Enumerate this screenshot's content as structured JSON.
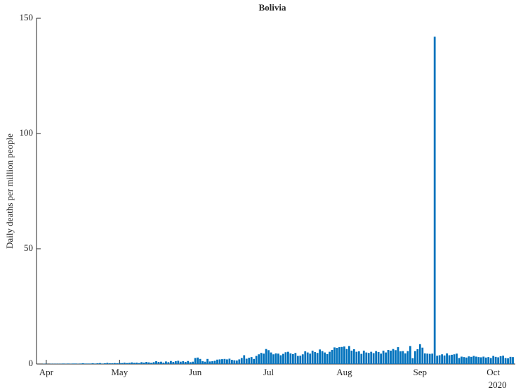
{
  "chart_data": {
    "type": "bar",
    "title": "Bolivia",
    "y_label": "Daily deaths per million people",
    "x_year_label": "2020",
    "color": "#0072bd",
    "x": [
      90,
      91,
      92,
      93,
      94,
      95,
      96,
      97,
      98,
      99,
      100,
      101,
      102,
      103,
      104,
      105,
      106,
      107,
      108,
      109,
      110,
      111,
      112,
      113,
      114,
      115,
      116,
      117,
      118,
      119,
      120,
      121,
      122,
      123,
      124,
      125,
      126,
      127,
      128,
      129,
      130,
      131,
      132,
      133,
      134,
      135,
      136,
      137,
      138,
      139,
      140,
      141,
      142,
      143,
      144,
      145,
      146,
      147,
      148,
      149,
      150,
      151,
      152,
      153,
      154,
      155,
      156,
      157,
      158,
      159,
      160,
      161,
      162,
      163,
      164,
      165,
      166,
      167,
      168,
      169,
      170,
      171,
      172,
      173,
      174,
      175,
      176,
      177,
      178,
      179,
      180,
      181,
      182,
      183,
      184,
      185,
      186,
      187,
      188,
      189,
      190,
      191,
      192,
      193,
      194,
      195,
      196,
      197,
      198,
      199,
      200,
      201,
      202,
      203,
      204,
      205,
      206,
      207,
      208,
      209,
      210,
      211,
      212,
      213,
      214,
      215,
      216,
      217,
      218,
      219,
      220,
      221,
      222,
      223,
      224,
      225,
      226,
      227,
      228,
      229,
      230,
      231,
      232,
      233,
      234,
      235,
      236,
      237,
      238,
      239,
      240,
      241,
      242,
      243,
      244,
      245,
      246,
      247,
      248,
      249,
      250,
      251,
      252,
      253,
      254,
      255,
      256,
      257,
      258,
      259,
      260,
      261,
      262,
      263,
      264,
      265,
      266,
      267,
      268,
      269,
      270,
      271,
      272,
      273,
      274,
      275,
      276,
      277,
      278,
      279,
      280,
      281,
      282,
      283
    ],
    "values": [
      0,
      0.1,
      0.1,
      0,
      0.1,
      0.1,
      0.1,
      0.1,
      0.1,
      0.2,
      0.1,
      0.2,
      0.1,
      0.2,
      0.2,
      0.1,
      0.2,
      0.3,
      0.2,
      0.2,
      0.2,
      0.3,
      0.2,
      0.3,
      0.4,
      0.2,
      0.3,
      0.5,
      0.3,
      0.3,
      0.4,
      0.3,
      0.5,
      0.4,
      0.6,
      0.4,
      0.5,
      0.7,
      0.5,
      0.6,
      0.4,
      0.8,
      0.6,
      0.9,
      0.7,
      0.5,
      0.8,
      1.2,
      0.9,
      1.0,
      0.6,
      1.1,
      0.8,
      1.3,
      0.9,
      1.2,
      1.4,
      1.0,
      1.2,
      0.9,
      1.3,
      0.8,
      1.0,
      2.6,
      2.8,
      2.2,
      1.2,
      1.0,
      2.2,
      1.1,
      1.2,
      1.4,
      1.9,
      2.0,
      2.1,
      2.2,
      2.0,
      2.3,
      1.8,
      1.6,
      1.5,
      2.0,
      2.6,
      3.8,
      2.3,
      2.7,
      3.0,
      2.2,
      3.5,
      4.2,
      4.8,
      4.5,
      6.5,
      6.0,
      5.0,
      4.2,
      4.6,
      4.5,
      3.8,
      4.4,
      5.1,
      5.3,
      4.6,
      4.3,
      4.8,
      3.5,
      3.6,
      4.2,
      5.5,
      5.0,
      4.5,
      5.8,
      5.2,
      4.8,
      6.3,
      5.6,
      5.0,
      4.3,
      5.3,
      6.1,
      7.2,
      7.0,
      7.3,
      7.4,
      7.6,
      6.5,
      7.8,
      5.8,
      6.4,
      5.3,
      5.5,
      4.4,
      5.8,
      5.0,
      4.8,
      5.3,
      4.7,
      5.6,
      5.2,
      4.5,
      5.8,
      5.0,
      6.1,
      5.8,
      6.5,
      6.0,
      7.3,
      5.5,
      5.6,
      4.6,
      5.6,
      7.8,
      2.5,
      5.6,
      6.4,
      8.6,
      7.1,
      4.6,
      4.5,
      4.4,
      4.5,
      142,
      3.6,
      3.8,
      4.2,
      3.7,
      4.6,
      3.8,
      4.0,
      4.2,
      4.5,
      2.6,
      3.2,
      3.0,
      2.8,
      3.3,
      3.1,
      3.5,
      3.2,
      3.0,
      2.9,
      3.2,
      2.8,
      3.0,
      2.6,
      3.5,
      3.1,
      2.9,
      3.4,
      3.6,
      2.6,
      2.5,
      3.1,
      3.0
    ],
    "xlim": [
      88,
      284
    ],
    "xticks": [
      {
        "value": 92,
        "label": "Apr"
      },
      {
        "value": 122,
        "label": "May"
      },
      {
        "value": 153,
        "label": "Jun"
      },
      {
        "value": 183,
        "label": "Jul"
      },
      {
        "value": 214,
        "label": "Aug"
      },
      {
        "value": 245,
        "label": "Sep"
      },
      {
        "value": 275,
        "label": "Oct"
      }
    ],
    "ylim": [
      0,
      150
    ],
    "yticks": [
      0,
      50,
      100,
      150
    ]
  }
}
